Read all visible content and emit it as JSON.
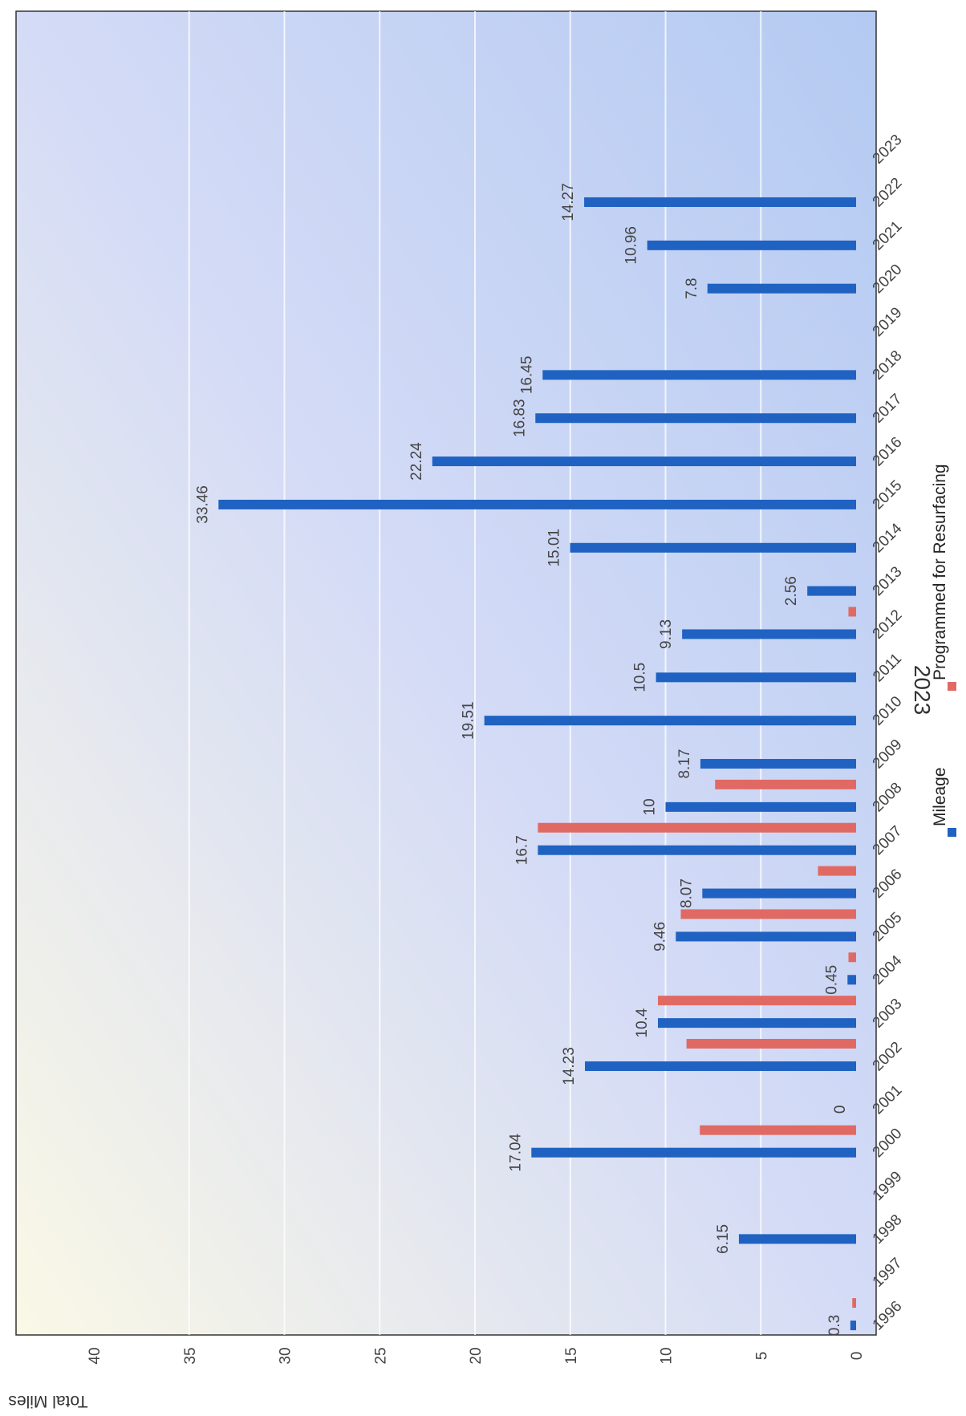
{
  "chart_data": {
    "type": "bar",
    "title": "2023",
    "ylabel": "Total Miles",
    "xlabel": "",
    "ylim": [
      0,
      40
    ],
    "yticks": [
      0,
      5,
      10,
      15,
      20,
      25,
      30,
      35,
      40
    ],
    "grid": true,
    "legend_position": "bottom",
    "categories": [
      "1996",
      "1997",
      "1998",
      "1999",
      "2000",
      "2001",
      "2002",
      "2003",
      "2004",
      "2005",
      "2006",
      "2007",
      "2008",
      "2009",
      "2010",
      "2011",
      "2012",
      "2013",
      "2014",
      "2015",
      "2016",
      "2017",
      "2018",
      "2019",
      "2020",
      "2021",
      "2022",
      "2023"
    ],
    "series": [
      {
        "name": "Mileage",
        "color": "#1f62c2",
        "values": [
          0.3,
          null,
          6.15,
          null,
          17.04,
          0,
          14.23,
          10.4,
          0.45,
          9.46,
          8.07,
          16.7,
          10,
          8.17,
          19.51,
          10.5,
          9.13,
          2.56,
          15.01,
          33.46,
          22.24,
          16.83,
          16.45,
          null,
          7.8,
          10.96,
          14.27,
          null
        ],
        "labels": [
          "0.3",
          "",
          "6.15",
          "",
          "17.04",
          "0",
          "14.23",
          "10.4",
          "0.45",
          "9.46",
          "8.07",
          "16.7",
          "10",
          "8.17",
          "19.51",
          "10.5",
          "9.13",
          "2.56",
          "15.01",
          "33.46",
          "22.24",
          "16.83",
          "16.45",
          "",
          "7.8",
          "10.96",
          "14.27",
          ""
        ]
      },
      {
        "name": "Programmed for Resurfacing",
        "color": "#e06a63",
        "values": [
          0.2,
          null,
          null,
          null,
          8.2,
          null,
          8.9,
          10.4,
          0.4,
          9.2,
          2.0,
          16.7,
          7.4,
          null,
          null,
          null,
          0.4,
          null,
          null,
          null,
          null,
          null,
          null,
          null,
          null,
          null,
          null,
          null
        ]
      }
    ]
  }
}
